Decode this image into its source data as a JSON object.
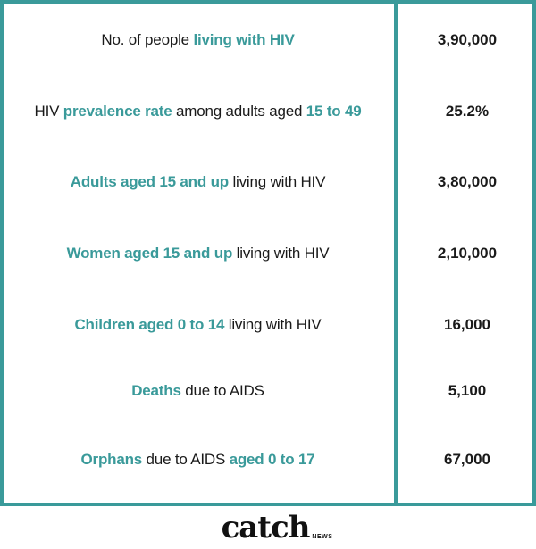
{
  "colors": {
    "accent": "#3a9a9a",
    "text": "#1a1a1a",
    "border": "#3a9a9a"
  },
  "rows": [
    {
      "label_parts": [
        {
          "text": "No. of people ",
          "highlight": false
        },
        {
          "text": "living with HIV",
          "highlight": true
        }
      ],
      "value": "3,90,000"
    },
    {
      "label_parts": [
        {
          "text": "HIV ",
          "highlight": false
        },
        {
          "text": "prevalence rate",
          "highlight": true
        },
        {
          "text": " among adults aged ",
          "highlight": false
        },
        {
          "text": "15 to 49",
          "highlight": true
        }
      ],
      "value": "25.2%"
    },
    {
      "label_parts": [
        {
          "text": "Adults aged 15 and up",
          "highlight": true
        },
        {
          "text": " living with HIV",
          "highlight": false
        }
      ],
      "value": "3,80,000"
    },
    {
      "label_parts": [
        {
          "text": "Women aged 15 and up",
          "highlight": true
        },
        {
          "text": " living with HIV",
          "highlight": false
        }
      ],
      "value": "2,10,000"
    },
    {
      "label_parts": [
        {
          "text": "Children aged 0 to 14",
          "highlight": true
        },
        {
          "text": " living with HIV",
          "highlight": false
        }
      ],
      "value": "16,000"
    },
    {
      "label_parts": [
        {
          "text": "Deaths",
          "highlight": true
        },
        {
          "text": " due to AIDS",
          "highlight": false
        }
      ],
      "value": "5,100"
    },
    {
      "label_parts": [
        {
          "text": "Orphans",
          "highlight": true
        },
        {
          "text": " due to AIDS ",
          "highlight": false
        },
        {
          "text": "aged 0 to 17",
          "highlight": true
        }
      ],
      "value": "67,000"
    }
  ],
  "footer": {
    "logo_main": "catch",
    "logo_sub": "NEWS"
  }
}
